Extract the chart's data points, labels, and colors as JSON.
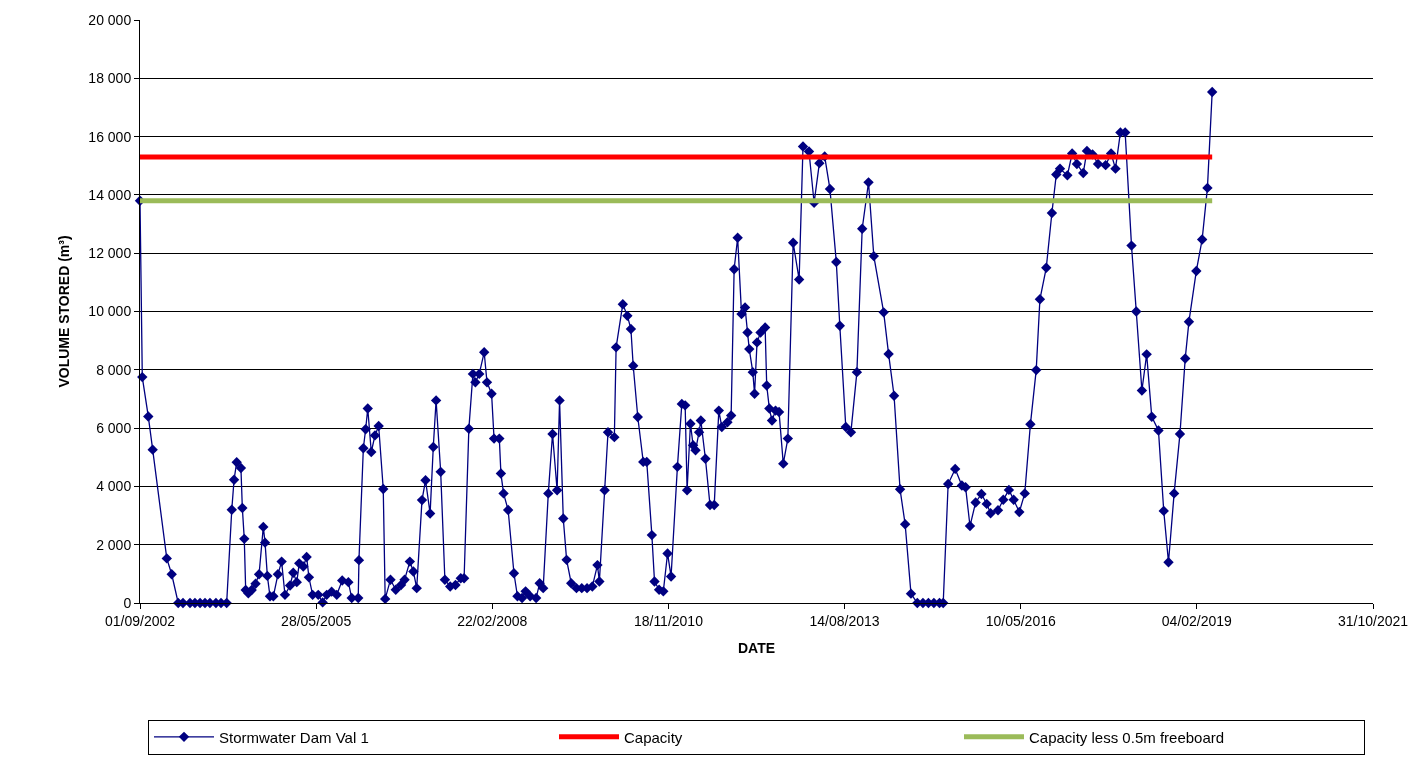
{
  "chart_data": {
    "type": "line",
    "xlabel": "DATE",
    "ylabel": "VOLUME STORED (m³)",
    "xlim": [
      "2002-09-01",
      "2021-10-31"
    ],
    "xticks": [
      {
        "value": "2002-09-01",
        "label": "01/09/2002"
      },
      {
        "value": "2005-05-28",
        "label": "28/05/2005"
      },
      {
        "value": "2008-02-22",
        "label": "22/02/2008"
      },
      {
        "value": "2010-11-18",
        "label": "18/11/2010"
      },
      {
        "value": "2013-08-14",
        "label": "14/08/2013"
      },
      {
        "value": "2016-05-10",
        "label": "10/05/2016"
      },
      {
        "value": "2019-02-04",
        "label": "04/02/2019"
      },
      {
        "value": "2021-10-31",
        "label": "31/10/2021"
      }
    ],
    "ylim": [
      0,
      20000
    ],
    "yticks": [
      {
        "value": 0,
        "label": "0"
      },
      {
        "value": 2000,
        "label": "2 000"
      },
      {
        "value": 4000,
        "label": "4 000"
      },
      {
        "value": 6000,
        "label": "6 000"
      },
      {
        "value": 8000,
        "label": "8 000"
      },
      {
        "value": 10000,
        "label": "10 000"
      },
      {
        "value": 12000,
        "label": "12 000"
      },
      {
        "value": 14000,
        "label": "14 000"
      },
      {
        "value": 16000,
        "label": "16 000"
      },
      {
        "value": 18000,
        "label": "18 000"
      },
      {
        "value": 20000,
        "label": "20 000"
      }
    ],
    "grid": "y",
    "legend": "bottom",
    "series": [
      {
        "name": "Stormwater Dam Val 1",
        "color": "#000080",
        "marker": "diamond",
        "x": [
          "2002-09-01",
          "2002-09-14",
          "2002-10-18",
          "2002-11-12",
          "2003-01-31",
          "2003-02-28",
          "2003-04-06",
          "2003-05-03",
          "2003-06-12",
          "2003-07-10",
          "2003-08-08",
          "2003-09-05",
          "2003-10-03",
          "2003-11-06",
          "2003-12-05",
          "2004-01-06",
          "2004-02-04",
          "2004-02-17",
          "2004-03-03",
          "2004-03-27",
          "2004-04-04",
          "2004-04-15",
          "2004-04-23",
          "2004-05-08",
          "2004-05-27",
          "2004-06-18",
          "2004-07-08",
          "2004-08-01",
          "2004-08-11",
          "2004-08-24",
          "2004-09-08",
          "2004-09-27",
          "2004-10-23",
          "2004-11-13",
          "2004-12-02",
          "2004-12-31",
          "2005-01-18",
          "2005-02-07",
          "2005-02-21",
          "2005-03-16",
          "2005-04-04",
          "2005-04-17",
          "2005-05-08",
          "2005-06-09",
          "2005-07-04",
          "2005-07-27",
          "2005-08-24",
          "2005-09-22",
          "2005-10-23",
          "2005-11-27",
          "2005-12-16",
          "2006-01-22",
          "2006-01-26",
          "2006-02-20",
          "2006-03-05",
          "2006-03-17",
          "2006-04-06",
          "2006-04-27",
          "2006-05-18",
          "2006-06-13",
          "2006-06-24",
          "2006-07-24",
          "2006-08-23",
          "2006-09-22",
          "2006-10-12",
          "2006-11-11",
          "2006-12-01",
          "2006-12-20",
          "2007-01-19",
          "2007-02-08",
          "2007-03-06",
          "2007-03-24",
          "2007-04-09",
          "2007-05-05",
          "2007-05-29",
          "2007-06-28",
          "2007-07-28",
          "2007-08-27",
          "2007-09-15",
          "2007-10-12",
          "2007-11-04",
          "2007-11-18",
          "2007-12-10",
          "2008-01-07",
          "2008-01-23",
          "2008-02-18",
          "2008-03-03",
          "2008-04-02",
          "2008-04-11",
          "2008-04-26",
          "2008-05-22",
          "2008-06-24",
          "2008-07-14",
          "2008-08-09",
          "2008-08-29",
          "2008-09-24",
          "2008-10-28",
          "2008-11-17",
          "2008-12-07",
          "2009-01-05",
          "2009-01-29",
          "2009-02-24",
          "2009-03-10",
          "2009-03-31",
          "2009-04-19",
          "2009-05-15",
          "2009-06-14",
          "2009-07-14",
          "2009-08-13",
          "2009-09-12",
          "2009-10-11",
          "2009-10-22",
          "2009-11-21",
          "2009-12-10",
          "2010-01-15",
          "2010-01-25",
          "2010-03-04",
          "2010-03-30",
          "2010-04-19",
          "2010-05-02",
          "2010-05-28",
          "2010-06-28",
          "2010-07-18",
          "2010-08-16",
          "2010-08-31",
          "2010-09-26",
          "2010-10-20",
          "2010-11-13",
          "2010-12-03",
          "2011-01-08",
          "2011-02-02",
          "2011-02-21",
          "2011-03-04",
          "2011-03-23",
          "2011-04-07",
          "2011-04-21",
          "2011-05-11",
          "2011-05-21",
          "2011-06-16",
          "2011-07-12",
          "2011-08-05",
          "2011-08-31",
          "2011-09-17",
          "2011-10-19",
          "2011-11-09",
          "2011-11-26",
          "2011-12-16",
          "2012-01-07",
          "2012-01-27",
          "2012-02-10",
          "2012-02-20",
          "2012-03-11",
          "2012-03-21",
          "2012-04-04",
          "2012-04-24",
          "2012-05-20",
          "2012-05-29",
          "2012-06-13",
          "2012-06-28",
          "2012-07-18",
          "2012-08-07",
          "2012-08-31",
          "2012-09-26",
          "2012-10-26",
          "2012-11-29",
          "2012-12-21",
          "2013-01-24",
          "2013-02-22",
          "2013-03-24",
          "2013-04-23",
          "2013-05-23",
          "2013-06-28",
          "2013-07-18",
          "2013-08-21",
          "2013-09-19",
          "2013-10-23",
          "2013-11-22",
          "2013-12-28",
          "2014-01-27",
          "2014-03-24",
          "2014-04-21",
          "2014-05-22",
          "2014-06-25",
          "2014-07-24",
          "2014-08-26",
          "2014-10-01",
          "2014-11-02",
          "2014-12-03",
          "2015-01-03",
          "2015-02-04",
          "2015-02-25",
          "2015-03-25",
          "2015-05-04",
          "2015-06-11",
          "2015-07-02",
          "2015-07-27",
          "2015-08-28",
          "2015-09-30",
          "2015-10-30",
          "2015-11-21",
          "2016-01-02",
          "2016-02-01",
          "2016-03-04",
          "2016-03-31",
          "2016-05-02",
          "2016-06-02",
          "2016-07-04",
          "2016-08-06",
          "2016-08-27",
          "2016-10-02",
          "2016-11-03",
          "2016-11-28",
          "2016-12-19",
          "2017-01-30",
          "2017-02-26",
          "2017-03-25",
          "2017-04-30",
          "2017-05-21",
          "2017-06-22",
          "2017-07-23",
          "2017-09-04",
          "2017-10-05",
          "2017-10-30",
          "2017-11-27",
          "2017-12-24",
          "2018-01-29",
          "2018-02-25",
          "2018-03-29",
          "2018-04-25",
          "2018-05-24",
          "2018-07-01",
          "2018-07-31",
          "2018-08-27",
          "2018-09-28",
          "2018-10-31",
          "2018-11-30",
          "2018-12-21",
          "2019-02-01",
          "2019-03-06",
          "2019-04-05",
          "2019-05-02"
        ],
        "values": [
          13800,
          7750,
          6400,
          5260,
          1530,
          985,
          0,
          0,
          0,
          0,
          0,
          0,
          0,
          0,
          0,
          0,
          3200,
          4230,
          4830,
          4630,
          3260,
          2200,
          445,
          335,
          445,
          660,
          985,
          2610,
          2070,
          930,
          230,
          230,
          985,
          1420,
          280,
          600,
          1040,
          715,
          1360,
          1250,
          1580,
          880,
          280,
          280,
          20,
          280,
          390,
          280,
          770,
          715,
          170,
          170,
          1470,
          5310,
          5960,
          6670,
          5180,
          5750,
          6070,
          3910,
          140,
          800,
          455,
          620,
          800,
          1420,
          1080,
          510,
          3530,
          4210,
          3070,
          5350,
          6950,
          4500,
          800,
          565,
          620,
          850,
          850,
          5980,
          7860,
          7570,
          7860,
          8600,
          7570,
          7180,
          5640,
          5640,
          4440,
          3760,
          3190,
          1020,
          230,
          170,
          400,
          230,
          170,
          680,
          510,
          3760,
          5800,
          3870,
          6950,
          2900,
          1480,
          680,
          510,
          510,
          510,
          565,
          1300,
          740,
          3870,
          5860,
          5690,
          8770,
          10250,
          9850,
          9400,
          8140,
          6380,
          4840,
          4840,
          2330,
          740,
          455,
          400,
          1700,
          910,
          4670,
          6830,
          6780,
          3870,
          6150,
          5410,
          5240,
          5860,
          6260,
          4950,
          3360,
          3360,
          6600,
          6040,
          6200,
          6430,
          11450,
          12530,
          9910,
          10140,
          9280,
          8710,
          7920,
          7180,
          8940,
          9280,
          9450,
          7460,
          6670,
          6260,
          6600,
          6550,
          4780,
          5640,
          12360,
          11100,
          15660,
          15490,
          13730,
          15090,
          15320,
          14200,
          11700,
          9510,
          6040,
          5860,
          7920,
          12840,
          14430,
          11900,
          9970,
          8540,
          7110,
          3900,
          2700,
          320,
          0,
          0,
          0,
          0,
          0,
          0,
          4080,
          4600,
          4030,
          3970,
          2640,
          3450,
          3740,
          3400,
          3080,
          3180,
          3540,
          3880,
          3540,
          3120,
          3760,
          6130,
          7990,
          10420,
          11500,
          13380,
          14700,
          14900,
          14670,
          15420,
          15060,
          14750,
          15510,
          15390,
          15060,
          15020,
          15420,
          14900,
          16140,
          16140,
          12260,
          10000,
          7290,
          8530,
          6390,
          5920,
          3160,
          1400,
          3760,
          5800,
          8390,
          9650,
          11390,
          12470,
          14240,
          17530
        ]
      },
      {
        "name": "Capacity",
        "color": "#ff0000",
        "marker": "none",
        "x": [
          "2002-09-01",
          "2019-05-02"
        ],
        "values": [
          15300,
          15300
        ]
      },
      {
        "name": "Capacity less 0.5m freeboard",
        "color": "#9bbb59",
        "marker": "none",
        "x": [
          "2002-09-01",
          "2019-05-02"
        ],
        "values": [
          13800,
          13800
        ]
      }
    ]
  }
}
